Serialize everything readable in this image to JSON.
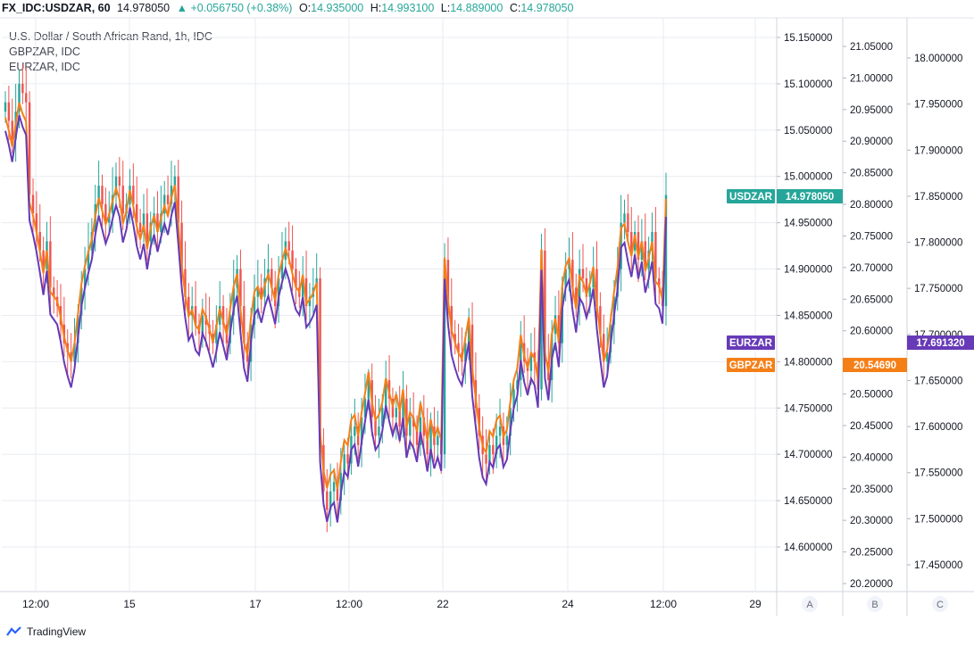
{
  "header": {
    "symbol": "FX_IDC:USDZAR, 60",
    "last": "14.978050",
    "arrow": "▲",
    "change": "+0.056750 (+0.38%)",
    "o_label": "O:",
    "o_value": "14.935000",
    "h_label": "H:",
    "h_value": "14.993100",
    "l_label": "L:",
    "l_value": "14.889000",
    "c_label": "C:",
    "c_value": "14.978050"
  },
  "legend": {
    "main": "U.S. Dollar / South African Rand, 1h, IDC",
    "s2": "GBPZAR, IDC",
    "s3": "EURZAR, IDC"
  },
  "brand": "TradingView",
  "colors": {
    "up": "#26a69a",
    "down": "#ef5350",
    "gbp": "#f57f17",
    "eur": "#673ab7",
    "usd_badge": "#26a69a",
    "grid": "#e8ebf0",
    "text": "#131722"
  },
  "chart_data": {
    "type": "candlestick-with-line-overlays",
    "x_ticks": [
      "12:00",
      "15",
      "17",
      "12:00",
      "22",
      "24",
      "12:00",
      "29"
    ],
    "scales": [
      {
        "id": "A",
        "series": "USDZAR",
        "range": [
          14.58,
          15.17
        ],
        "ticks": [
          "15.150000",
          "15.100000",
          "15.050000",
          "15.000000",
          "14.950000",
          "14.900000",
          "14.850000",
          "14.800000",
          "14.750000",
          "14.700000",
          "14.650000",
          "14.600000"
        ]
      },
      {
        "id": "B",
        "series": "GBPZAR",
        "range": [
          20.18,
          21.08
        ],
        "ticks": [
          "21.05000",
          "21.00000",
          "20.95000",
          "20.90000",
          "20.85000",
          "20.80000",
          "20.75000",
          "20.70000",
          "20.65000",
          "20.60000",
          "20.55000",
          "20.50000",
          "20.45000",
          "20.40000",
          "20.35000",
          "20.30000",
          "20.25000",
          "20.20000"
        ]
      },
      {
        "id": "C",
        "series": "EURZAR",
        "range": [
          17.42,
          18.05
        ],
        "ticks": [
          "18.000000",
          "17.950000",
          "17.900000",
          "17.850000",
          "17.800000",
          "17.750000",
          "17.700000",
          "17.650000",
          "17.600000",
          "17.550000",
          "17.500000",
          "17.450000"
        ]
      }
    ],
    "scale_letters": [
      "A",
      "B",
      "C"
    ],
    "last_values": [
      {
        "name": "USDZAR",
        "value": "14.978050"
      },
      {
        "name": "EURZAR",
        "value": "17.691320"
      },
      {
        "name": "GBPZAR",
        "value": "20.54690"
      }
    ],
    "usdzar_close": [
      15.08,
      15.06,
      15.04,
      15.07,
      15.1,
      15.09,
      15.08,
      14.98,
      14.96,
      14.94,
      14.92,
      14.9,
      14.93,
      14.88,
      14.87,
      14.86,
      14.84,
      14.82,
      14.81,
      14.8,
      14.82,
      14.85,
      14.88,
      14.9,
      14.92,
      14.94,
      14.97,
      14.99,
      14.97,
      14.95,
      14.96,
      14.98,
      15.0,
      14.99,
      14.96,
      14.97,
      14.99,
      14.97,
      14.95,
      14.94,
      14.96,
      14.93,
      14.95,
      14.96,
      14.94,
      14.96,
      14.98,
      14.97,
      14.99,
      15.0,
      14.95,
      14.9,
      14.87,
      14.85,
      14.86,
      14.84,
      14.83,
      14.85,
      14.84,
      14.83,
      14.82,
      14.84,
      14.86,
      14.84,
      14.82,
      14.85,
      14.88,
      14.9,
      14.86,
      14.82,
      14.8,
      14.84,
      14.87,
      14.88,
      14.87,
      14.89,
      14.9,
      14.88,
      14.86,
      14.89,
      14.91,
      14.93,
      14.92,
      14.9,
      14.88,
      14.87,
      14.89,
      14.86,
      14.87,
      14.88,
      14.89,
      14.71,
      14.66,
      14.64,
      14.66,
      14.67,
      14.65,
      14.68,
      14.7,
      14.69,
      14.72,
      14.73,
      14.71,
      14.74,
      14.76,
      14.78,
      14.74,
      14.72,
      14.73,
      14.75,
      14.78,
      14.76,
      14.74,
      14.75,
      14.73,
      14.76,
      14.72,
      14.74,
      14.73,
      14.71,
      14.74,
      14.72,
      14.7,
      14.73,
      14.71,
      14.72,
      14.7,
      14.91,
      14.86,
      14.83,
      14.82,
      14.81,
      14.8,
      14.82,
      14.84,
      14.78,
      14.75,
      14.72,
      14.7,
      14.69,
      14.71,
      14.7,
      14.72,
      14.73,
      14.71,
      14.72,
      14.75,
      14.77,
      14.78,
      14.82,
      14.8,
      14.79,
      14.81,
      14.8,
      14.77,
      14.92,
      14.8,
      14.78,
      14.83,
      14.85,
      14.82,
      14.88,
      14.9,
      14.91,
      14.88,
      14.86,
      14.9,
      14.89,
      14.87,
      14.88,
      14.9,
      14.86,
      14.83,
      14.8,
      14.81,
      14.84,
      14.87,
      14.9,
      14.95,
      14.96,
      14.94,
      14.92,
      14.94,
      14.91,
      14.93,
      14.9,
      14.92,
      14.94,
      14.89,
      14.88,
      14.86,
      14.98
    ]
  }
}
